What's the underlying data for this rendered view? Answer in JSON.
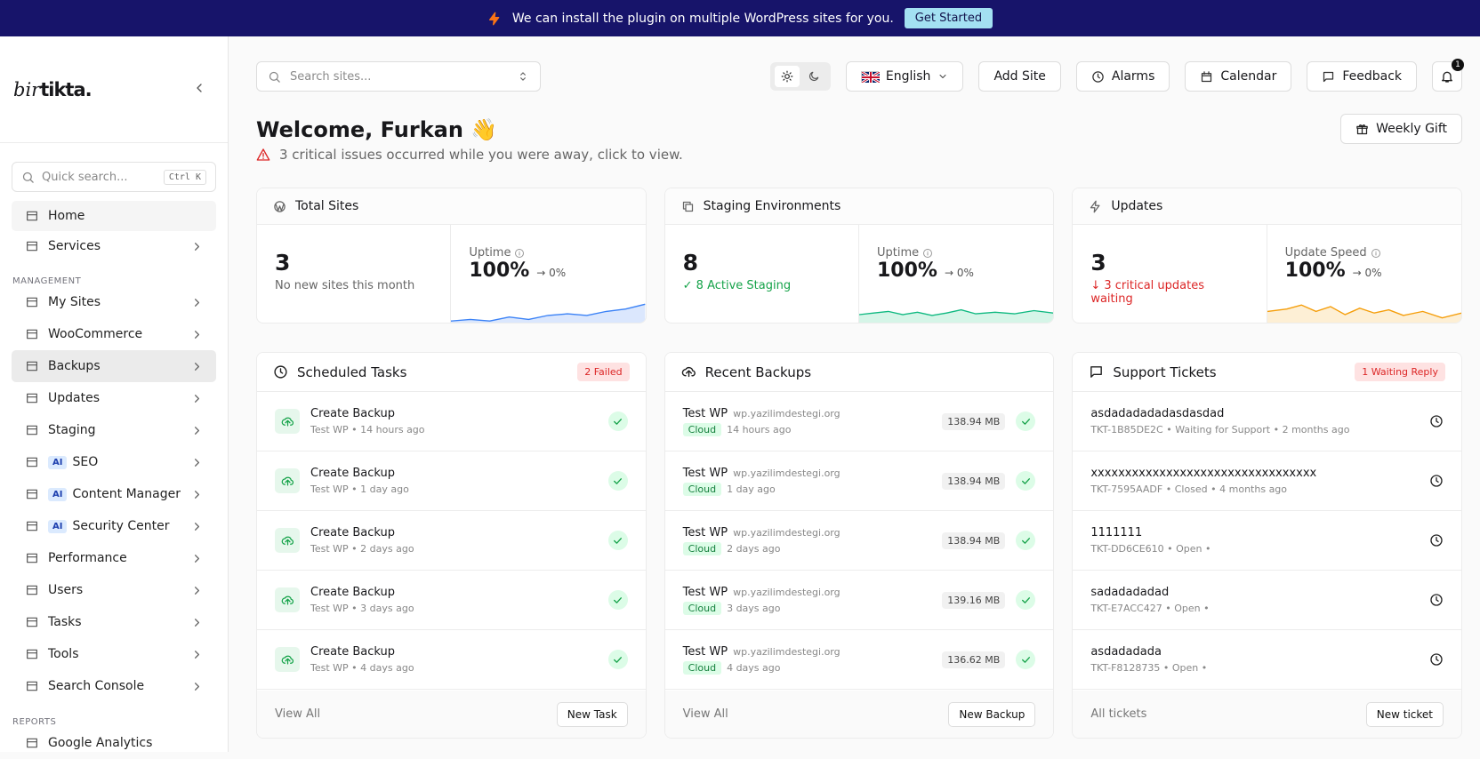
{
  "banner": {
    "text": "We can install the plugin on multiple WordPress sites for you.",
    "button": "Get Started"
  },
  "sidebar": {
    "logo": {
      "prefix": "bir",
      "name": "tikta."
    },
    "quick_search": "Quick search...",
    "shortcut": "Ctrl K",
    "groups": [
      {
        "items": [
          {
            "label": "Home"
          },
          {
            "label": "Services",
            "submenu": true
          }
        ]
      },
      {
        "title": "MANAGEMENT",
        "items": [
          {
            "label": "My Sites",
            "submenu": true
          },
          {
            "label": "WooCommerce",
            "submenu": true
          },
          {
            "label": "Backups",
            "submenu": true,
            "active": true
          },
          {
            "label": "Updates",
            "submenu": true
          },
          {
            "label": "Staging",
            "submenu": true
          },
          {
            "label": "SEO",
            "badge": "AI",
            "submenu": true
          },
          {
            "label": "Content Manager",
            "badge": "AI",
            "submenu": true
          },
          {
            "label": "Security Center",
            "badge": "AI",
            "submenu": true
          },
          {
            "label": "Performance",
            "submenu": true
          },
          {
            "label": "Users",
            "submenu": true
          },
          {
            "label": "Tasks",
            "submenu": true
          },
          {
            "label": "Tools",
            "submenu": true
          },
          {
            "label": "Search Console",
            "submenu": true
          }
        ]
      },
      {
        "title": "REPORTS",
        "items": [
          {
            "label": "Google Analytics"
          }
        ]
      }
    ]
  },
  "topbar": {
    "search": "Search sites...",
    "language": "English",
    "buttons": [
      "Add Site",
      "Alarms",
      "Calendar",
      "Feedback"
    ],
    "notifications": 1
  },
  "welcome": {
    "title": "Welcome, Furkan 👋",
    "alert": "3 critical issues occurred while you were away, click to view.",
    "gift": "Weekly Gift"
  },
  "stats": [
    {
      "title": "Total Sites",
      "value": 3,
      "note": "No new sites this month",
      "metric_label": "Uptime",
      "metric": "100%",
      "change": "→ 0%"
    },
    {
      "title": "Staging Environments",
      "value": 8,
      "note": "✓ 8 Active Staging",
      "metric_label": "Uptime",
      "metric": "100%",
      "change": "→ 0%"
    },
    {
      "title": "Updates",
      "value": 3,
      "note": "↓ 3 critical updates waiting",
      "metric_label": "Update Speed",
      "metric": "100%",
      "change": "→ 0%"
    }
  ],
  "tasks": {
    "title": "Scheduled Tasks",
    "badge": "2 Failed",
    "items": [
      {
        "name": "Create Backup",
        "meta": "Test WP • 14 hours ago"
      },
      {
        "name": "Create Backup",
        "meta": "Test WP • 1 day ago"
      },
      {
        "name": "Create Backup",
        "meta": "Test WP • 2 days ago"
      },
      {
        "name": "Create Backup",
        "meta": "Test WP • 3 days ago"
      },
      {
        "name": "Create Backup",
        "meta": "Test WP • 4 days ago"
      }
    ],
    "link": "View All",
    "button": "New Task"
  },
  "backups": {
    "title": "Recent Backups",
    "items": [
      {
        "name": "Test WP",
        "domain": "wp.yazilimdestegi.org",
        "tag": "Cloud",
        "time": "14 hours ago",
        "size": "138.94 MB"
      },
      {
        "name": "Test WP",
        "domain": "wp.yazilimdestegi.org",
        "tag": "Cloud",
        "time": "1 day ago",
        "size": "138.94 MB"
      },
      {
        "name": "Test WP",
        "domain": "wp.yazilimdestegi.org",
        "tag": "Cloud",
        "time": "2 days ago",
        "size": "138.94 MB"
      },
      {
        "name": "Test WP",
        "domain": "wp.yazilimdestegi.org",
        "tag": "Cloud",
        "time": "3 days ago",
        "size": "139.16 MB"
      },
      {
        "name": "Test WP",
        "domain": "wp.yazilimdestegi.org",
        "tag": "Cloud",
        "time": "4 days ago",
        "size": "136.62 MB"
      }
    ],
    "link": "View All",
    "button": "New Backup"
  },
  "tickets": {
    "title": "Support Tickets",
    "badge": "1 Waiting Reply",
    "items": [
      {
        "name": "asdadadadadasdasdad",
        "meta": "TKT-1B85DE2C • Waiting for Support • 2 months ago"
      },
      {
        "name": "xxxxxxxxxxxxxxxxxxxxxxxxxxxxxxxxx",
        "meta": "TKT-7595AADF • Closed • 4 months ago"
      },
      {
        "name": "1111111",
        "meta": "TKT-DD6CE610 • Open •"
      },
      {
        "name": "sadadadadad",
        "meta": "TKT-E7ACC427 • Open •"
      },
      {
        "name": "asdadadada",
        "meta": "TKT-F8128735 • Open •"
      }
    ],
    "link": "All tickets",
    "button": "New ticket"
  }
}
